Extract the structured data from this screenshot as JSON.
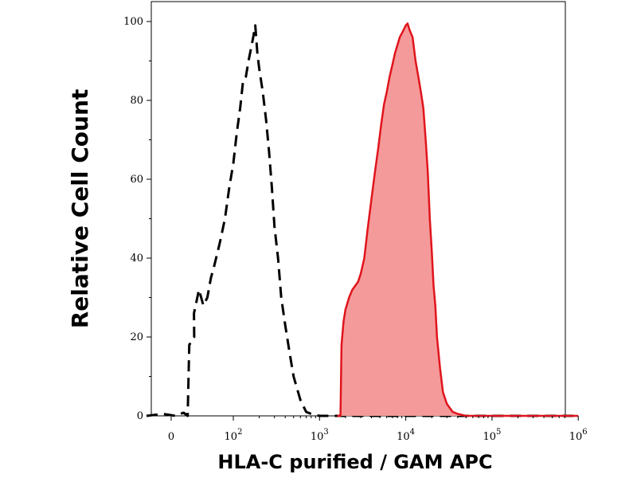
{
  "chart_data": {
    "type": "area",
    "title": "",
    "xlabel": "HLA-C purified / GAM APC",
    "ylabel": "Relative Cell Count",
    "x_scale": "biexponential",
    "xlim": [
      -30,
      1000000
    ],
    "ylim": [
      0,
      100
    ],
    "grid": false,
    "legend": "none",
    "y_ticks": [
      {
        "value": 0,
        "label": "0"
      },
      {
        "value": 20,
        "label": "20"
      },
      {
        "value": 40,
        "label": "40"
      },
      {
        "value": 60,
        "label": "60"
      },
      {
        "value": 80,
        "label": "80"
      },
      {
        "value": 100,
        "label": "100"
      }
    ],
    "x_ticks": [
      {
        "value": 0,
        "base": "0",
        "exp": ""
      },
      {
        "value": 100,
        "base": "10",
        "exp": "2"
      },
      {
        "value": 1000,
        "base": "10",
        "exp": "3"
      },
      {
        "value": 10000,
        "base": "10",
        "exp": "4"
      },
      {
        "value": 100000,
        "base": "10",
        "exp": "5"
      },
      {
        "value": 1000000,
        "base": "10",
        "exp": "6"
      }
    ],
    "series": [
      {
        "style": "dashed",
        "color": "#000000",
        "fill": "none",
        "points": [
          [
            -30,
            0
          ],
          [
            -10,
            0.5
          ],
          [
            5,
            0
          ],
          [
            15,
            0.8
          ],
          [
            20,
            0
          ],
          [
            22,
            18
          ],
          [
            28,
            20
          ],
          [
            35,
            26
          ],
          [
            40,
            32
          ],
          [
            45,
            28
          ],
          [
            50,
            30
          ],
          [
            55,
            35
          ],
          [
            60,
            38
          ],
          [
            70,
            44
          ],
          [
            80,
            50
          ],
          [
            90,
            58
          ],
          [
            100,
            64
          ],
          [
            110,
            72
          ],
          [
            120,
            78
          ],
          [
            130,
            85
          ],
          [
            140,
            86
          ],
          [
            150,
            90
          ],
          [
            160,
            93
          ],
          [
            170,
            96
          ],
          [
            180,
            99
          ],
          [
            190,
            92
          ],
          [
            200,
            88
          ],
          [
            220,
            82
          ],
          [
            240,
            75
          ],
          [
            260,
            67
          ],
          [
            280,
            58
          ],
          [
            300,
            48
          ],
          [
            330,
            40
          ],
          [
            360,
            30
          ],
          [
            400,
            23
          ],
          [
            450,
            16
          ],
          [
            500,
            10
          ],
          [
            600,
            4
          ],
          [
            700,
            1
          ],
          [
            800,
            0.5
          ],
          [
            1000,
            0
          ],
          [
            100000,
            0
          ],
          [
            1000000,
            0
          ]
        ]
      },
      {
        "style": "solid",
        "color": "#e0141c",
        "fill": "#f59a9a",
        "points": [
          [
            1600,
            0
          ],
          [
            1750,
            0
          ],
          [
            1800,
            18
          ],
          [
            1900,
            24
          ],
          [
            2000,
            27
          ],
          [
            2200,
            30
          ],
          [
            2400,
            32
          ],
          [
            2600,
            33
          ],
          [
            2800,
            34
          ],
          [
            3000,
            36
          ],
          [
            3300,
            40
          ],
          [
            3600,
            47
          ],
          [
            4000,
            55
          ],
          [
            4400,
            62
          ],
          [
            4800,
            68
          ],
          [
            5200,
            74
          ],
          [
            5600,
            79
          ],
          [
            6000,
            82
          ],
          [
            6500,
            86
          ],
          [
            7000,
            89
          ],
          [
            7500,
            92
          ],
          [
            8000,
            94
          ],
          [
            8500,
            96
          ],
          [
            9000,
            97
          ],
          [
            9500,
            98
          ],
          [
            10000,
            99
          ],
          [
            10500,
            99.5
          ],
          [
            11000,
            98
          ],
          [
            12000,
            96
          ],
          [
            13000,
            90
          ],
          [
            14000,
            86
          ],
          [
            15000,
            82
          ],
          [
            16000,
            78
          ],
          [
            17000,
            70
          ],
          [
            18000,
            62
          ],
          [
            19000,
            50
          ],
          [
            20000,
            42
          ],
          [
            21000,
            33
          ],
          [
            22000,
            28
          ],
          [
            23000,
            20
          ],
          [
            25000,
            12
          ],
          [
            27000,
            6
          ],
          [
            30000,
            3
          ],
          [
            35000,
            1
          ],
          [
            40000,
            0.5
          ],
          [
            50000,
            0
          ],
          [
            100000,
            0
          ],
          [
            1000000,
            0
          ]
        ]
      }
    ]
  }
}
